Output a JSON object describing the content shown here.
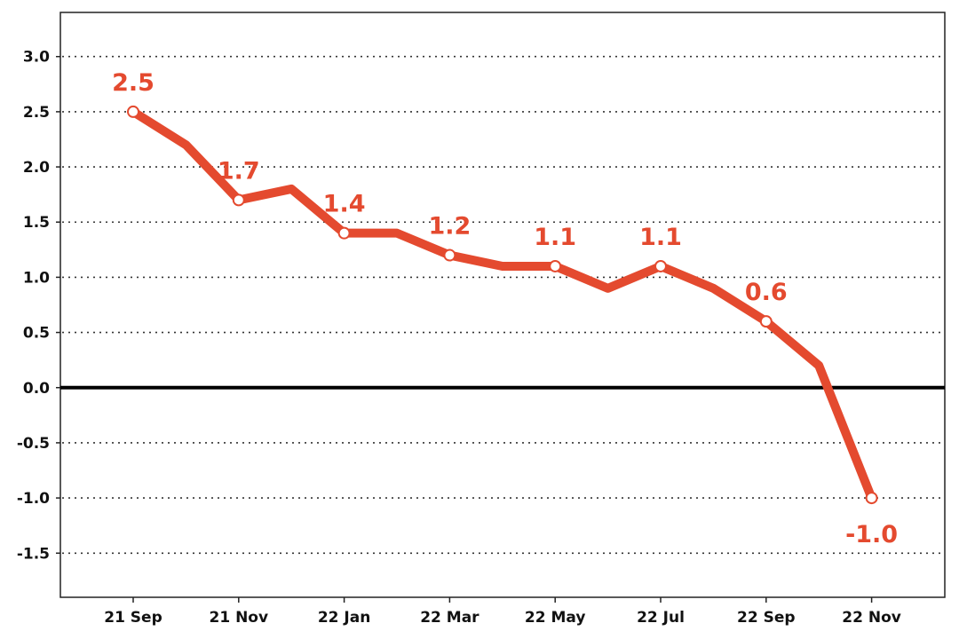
{
  "chart_data": {
    "type": "line",
    "title": "",
    "xlabel": "",
    "ylabel": "",
    "ylim": [
      -1.9,
      3.4
    ],
    "grid": "horizontal-dotted",
    "legend": "none",
    "color": "#e44a2f",
    "yticks": [
      3.0,
      2.5,
      2.0,
      1.5,
      1.0,
      0.5,
      0.0,
      -0.5,
      -1.0,
      -1.5
    ],
    "ytick_labels": [
      "3.0",
      "2.5",
      "2.0",
      "1.5",
      "1.0",
      "0.5",
      "0.0",
      "-0.5",
      "-1.0",
      "-1.5"
    ],
    "x": [
      "21 Sep",
      "21 Oct",
      "21 Nov",
      "21 Dec",
      "22 Jan",
      "22 Feb",
      "22 Mar",
      "22 Apr",
      "22 May",
      "22 Jun",
      "22 Jul",
      "22 Aug",
      "22 Sep",
      "22 Oct",
      "22 Nov"
    ],
    "xtick_labels": [
      "21 Sep",
      "21 Nov",
      "22 Jan",
      "22 Mar",
      "22 May",
      "22 Jul",
      "22 Sep",
      "22 Nov"
    ],
    "series": [
      {
        "values": [
          2.5,
          2.2,
          1.7,
          1.8,
          1.4,
          1.4,
          1.2,
          1.1,
          1.1,
          0.9,
          1.1,
          0.9,
          0.6,
          0.2,
          -1.0
        ]
      }
    ],
    "labeled_points": [
      {
        "x": "21 Sep",
        "label": "2.5",
        "position": "above"
      },
      {
        "x": "21 Nov",
        "label": "1.7",
        "position": "above"
      },
      {
        "x": "22 Jan",
        "label": "1.4",
        "position": "above"
      },
      {
        "x": "22 Mar",
        "label": "1.2",
        "position": "above"
      },
      {
        "x": "22 May",
        "label": "1.1",
        "position": "above"
      },
      {
        "x": "22 Jul",
        "label": "1.1",
        "position": "above"
      },
      {
        "x": "22 Sep",
        "label": "0.6",
        "position": "above"
      },
      {
        "x": "22 Nov",
        "label": "-1.0",
        "position": "below"
      }
    ]
  }
}
